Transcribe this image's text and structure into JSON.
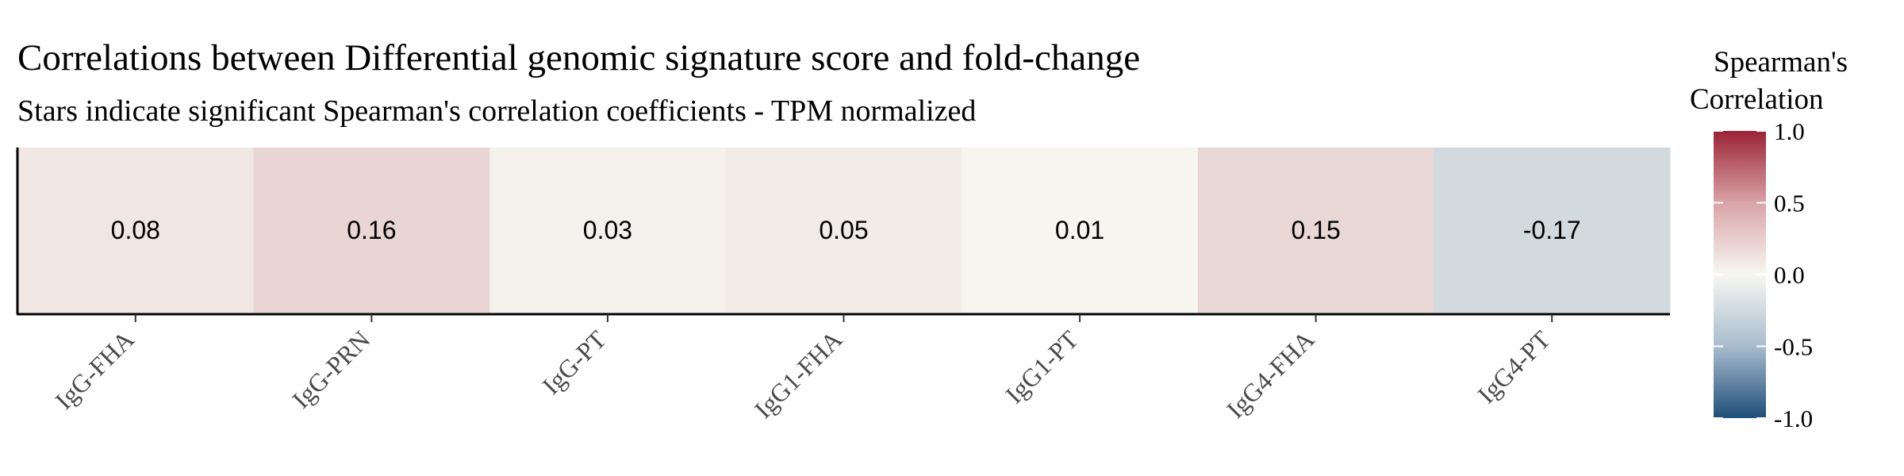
{
  "chart_data": {
    "type": "heatmap",
    "title": "Correlations between Differential genomic signature score and fold-change",
    "subtitle": "Stars indicate significant Spearman's correlation coefficients - TPM normalized",
    "categories": [
      "IgG-FHA",
      "IgG-PRN",
      "IgG-PT",
      "IgG1-FHA",
      "IgG1-PT",
      "IgG4-FHA",
      "IgG4-PT"
    ],
    "values": [
      0.08,
      0.16,
      0.03,
      0.05,
      0.01,
      0.15,
      -0.17
    ],
    "value_labels": [
      "0.08",
      "0.16",
      "0.03",
      "0.05",
      "0.01",
      "0.15",
      "-0.17"
    ],
    "color_scale": {
      "min": -1.0,
      "max": 1.0,
      "low_color": "#1f4e79",
      "mid_color": "#f7f7f2",
      "high_color": "#9b2335"
    },
    "legend": {
      "title_lines": [
        "Spearman's",
        "Correlation"
      ],
      "ticks": [
        1.0,
        0.5,
        0.0,
        -0.5,
        -1.0
      ],
      "tick_labels": [
        "1.0",
        "0.5",
        "0.0",
        "-0.5",
        "-1.0"
      ],
      "placement": "right"
    },
    "xlabel": "",
    "ylabel": "",
    "grid": false
  }
}
